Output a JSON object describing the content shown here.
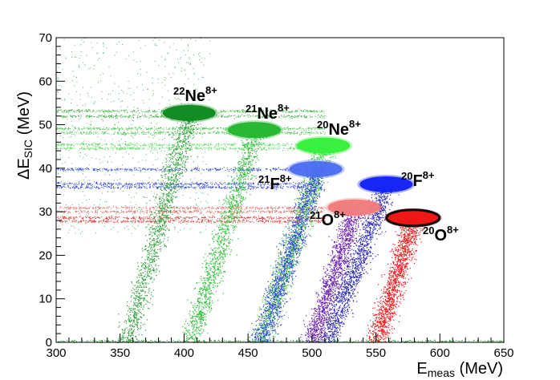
{
  "chart_data": {
    "type": "scatter",
    "title": "",
    "xlabel": {
      "main": "E",
      "sub": "meas",
      "unit": " (MeV)"
    },
    "ylabel": {
      "main": "ΔE",
      "sub": "SIC",
      "unit": " (MeV)"
    },
    "xlim": [
      300,
      650
    ],
    "ylim": [
      0,
      70
    ],
    "xticks": [
      300,
      350,
      400,
      450,
      500,
      550,
      600,
      650
    ],
    "yticks": [
      0,
      10,
      20,
      30,
      40,
      50,
      60,
      70
    ],
    "grid": false,
    "legend": "none",
    "groups": [
      {
        "mass": "22",
        "element": "Ne",
        "charge": "8+",
        "color": "#0c8a1c",
        "tail_color": "#2e9e3a",
        "blob": {
          "x": 404,
          "y": 52.7
        },
        "tail": {
          "x0": 355,
          "y0": 0,
          "x1": 404,
          "y1": 52
        }
      },
      {
        "mass": "21",
        "element": "Ne",
        "charge": "8+",
        "color": "#22b52c",
        "tail_color": "#2fbd38",
        "blob": {
          "x": 455,
          "y": 48.8
        },
        "tail": {
          "x0": 405,
          "y0": 0,
          "x1": 455,
          "y1": 48
        }
      },
      {
        "mass": "20",
        "element": "Ne",
        "charge": "8+",
        "color": "#33f03a",
        "tail_color": "#44d24b",
        "blob": {
          "x": 509,
          "y": 45.2
        },
        "tail": {
          "x0": 460,
          "y0": 0,
          "x1": 509,
          "y1": 44
        }
      },
      {
        "mass": "21",
        "element": "F",
        "charge": "8+",
        "color": "#4a6cf0",
        "tail_color": "#2a3fd9",
        "blob": {
          "x": 503,
          "y": 39.8
        },
        "tail": {
          "x0": 460,
          "y0": 0,
          "x1": 503,
          "y1": 39
        }
      },
      {
        "mass": "20",
        "element": "F",
        "charge": "8+",
        "color": "#1020f5",
        "tail_color": "#2a2ab4",
        "blob": {
          "x": 558,
          "y": 36.3
        },
        "tail": {
          "x0": 512,
          "y0": 0,
          "x1": 558,
          "y1": 36
        }
      },
      {
        "mass": "21",
        "element": "O",
        "charge": "8+",
        "color": "#f07a7a",
        "tail_color": "#6a1fb0",
        "blob": {
          "x": 533,
          "y": 31.0
        },
        "tail": {
          "x0": 500,
          "y0": 0,
          "x1": 533,
          "y1": 30
        }
      },
      {
        "mass": "20",
        "element": "O",
        "charge": "8+",
        "color": "#f01010",
        "tail_color": "#f01818",
        "blob": {
          "x": 579,
          "y": 28.6
        },
        "tail": {
          "x0": 550,
          "y0": 0,
          "x1": 579,
          "y1": 28
        },
        "highlighted": true
      }
    ],
    "background_bands": [
      {
        "y": 53.2,
        "color": "#3fae46"
      },
      {
        "y": 52.0,
        "color": "#3fae46"
      },
      {
        "y": 49.2,
        "color": "#4cc653"
      },
      {
        "y": 48.2,
        "color": "#4cc653"
      },
      {
        "y": 45.5,
        "color": "#5ddb63"
      },
      {
        "y": 44.6,
        "color": "#5ddb63"
      },
      {
        "y": 39.8,
        "color": "#2a3fd9"
      },
      {
        "y": 36.5,
        "color": "#2a3fd9"
      },
      {
        "y": 35.7,
        "color": "#2a3fd9"
      },
      {
        "y": 31.0,
        "color": "#e86b6b"
      },
      {
        "y": 30.1,
        "color": "#e86b6b"
      },
      {
        "y": 28.7,
        "color": "#e83030"
      },
      {
        "y": 27.9,
        "color": "#e83030"
      }
    ]
  }
}
